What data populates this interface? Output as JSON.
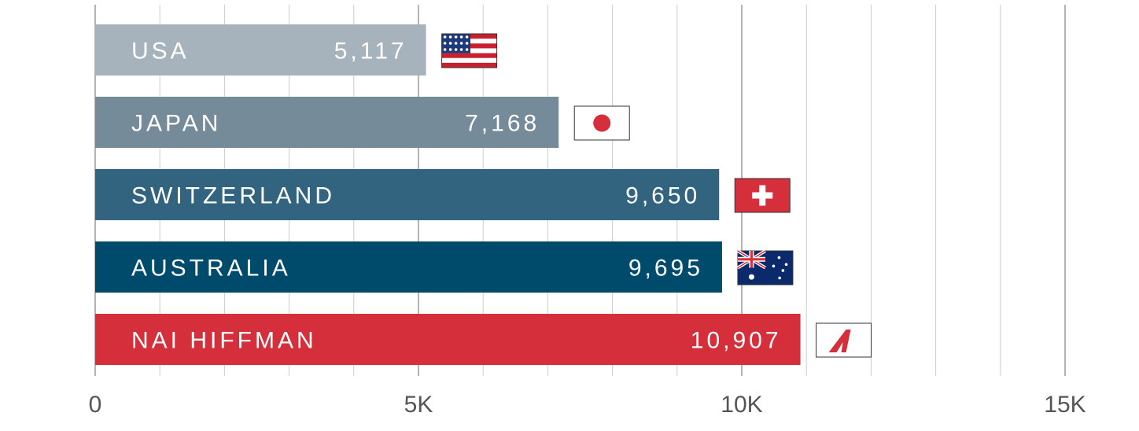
{
  "chart_data": {
    "type": "bar",
    "orientation": "horizontal",
    "categories": [
      "USA",
      "JAPAN",
      "SWITZERLAND",
      "AUSTRALIA",
      "NAI HIFFMAN"
    ],
    "values": [
      5117,
      7168,
      9650,
      9695,
      10907
    ],
    "value_labels": [
      "5,117",
      "7,168",
      "9,650",
      "9,695",
      "10,907"
    ],
    "colors": [
      "#a7b3bc",
      "#768b99",
      "#33647f",
      "#004a6b",
      "#d42f3a"
    ],
    "flags": [
      "usa-flag-icon",
      "japan-flag-icon",
      "switzerland-flag-icon",
      "australia-flag-icon",
      "nai-hiffman-logo-icon"
    ],
    "xlim": [
      0,
      15000
    ],
    "x_ticks": [
      0,
      5000,
      10000,
      15000
    ],
    "x_tick_labels": [
      "0",
      "5K",
      "10K",
      "15K"
    ],
    "minor_gridline_step": 1000,
    "grid": true,
    "title": "",
    "xlabel": "",
    "ylabel": ""
  }
}
